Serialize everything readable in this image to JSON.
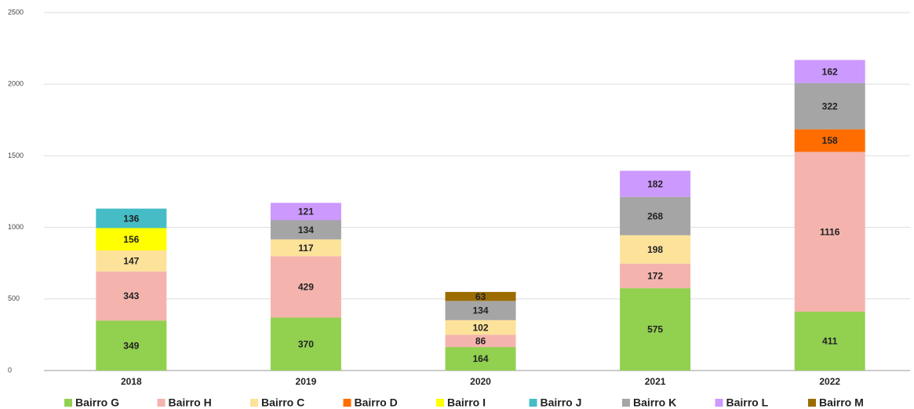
{
  "chart_data": {
    "type": "stacked_bar",
    "categories": [
      "2018",
      "2019",
      "2020",
      "2021",
      "2022"
    ],
    "series": [
      {
        "name": "Bairro G",
        "color": "#92d050",
        "values": [
          349,
          370,
          164,
          575,
          411
        ]
      },
      {
        "name": "Bairro H",
        "color": "#f4b4ad",
        "values": [
          343,
          429,
          86,
          172,
          1116
        ]
      },
      {
        "name": "Bairro C",
        "color": "#fde29a",
        "values": [
          147,
          117,
          102,
          198,
          null
        ]
      },
      {
        "name": "Bairro D",
        "color": "#ff6d01",
        "values": [
          null,
          null,
          null,
          null,
          158
        ]
      },
      {
        "name": "Bairro I",
        "color": "#ffff00",
        "values": [
          156,
          null,
          null,
          null,
          null
        ]
      },
      {
        "name": "Bairro J",
        "color": "#46bdc6",
        "values": [
          136,
          null,
          null,
          null,
          null
        ]
      },
      {
        "name": "Bairro K",
        "color": "#a5a5a5",
        "values": [
          null,
          134,
          134,
          268,
          322
        ]
      },
      {
        "name": "Bairro L",
        "color": "#cc99ff",
        "values": [
          null,
          121,
          null,
          182,
          162
        ]
      },
      {
        "name": "Bairro M",
        "color": "#9c6c00",
        "values": [
          null,
          null,
          63,
          null,
          null
        ]
      }
    ],
    "ylim": [
      0,
      2500
    ],
    "yticks": [
      0,
      500,
      1000,
      1500,
      2000,
      2500
    ],
    "grid": true,
    "legend": "bottom"
  }
}
